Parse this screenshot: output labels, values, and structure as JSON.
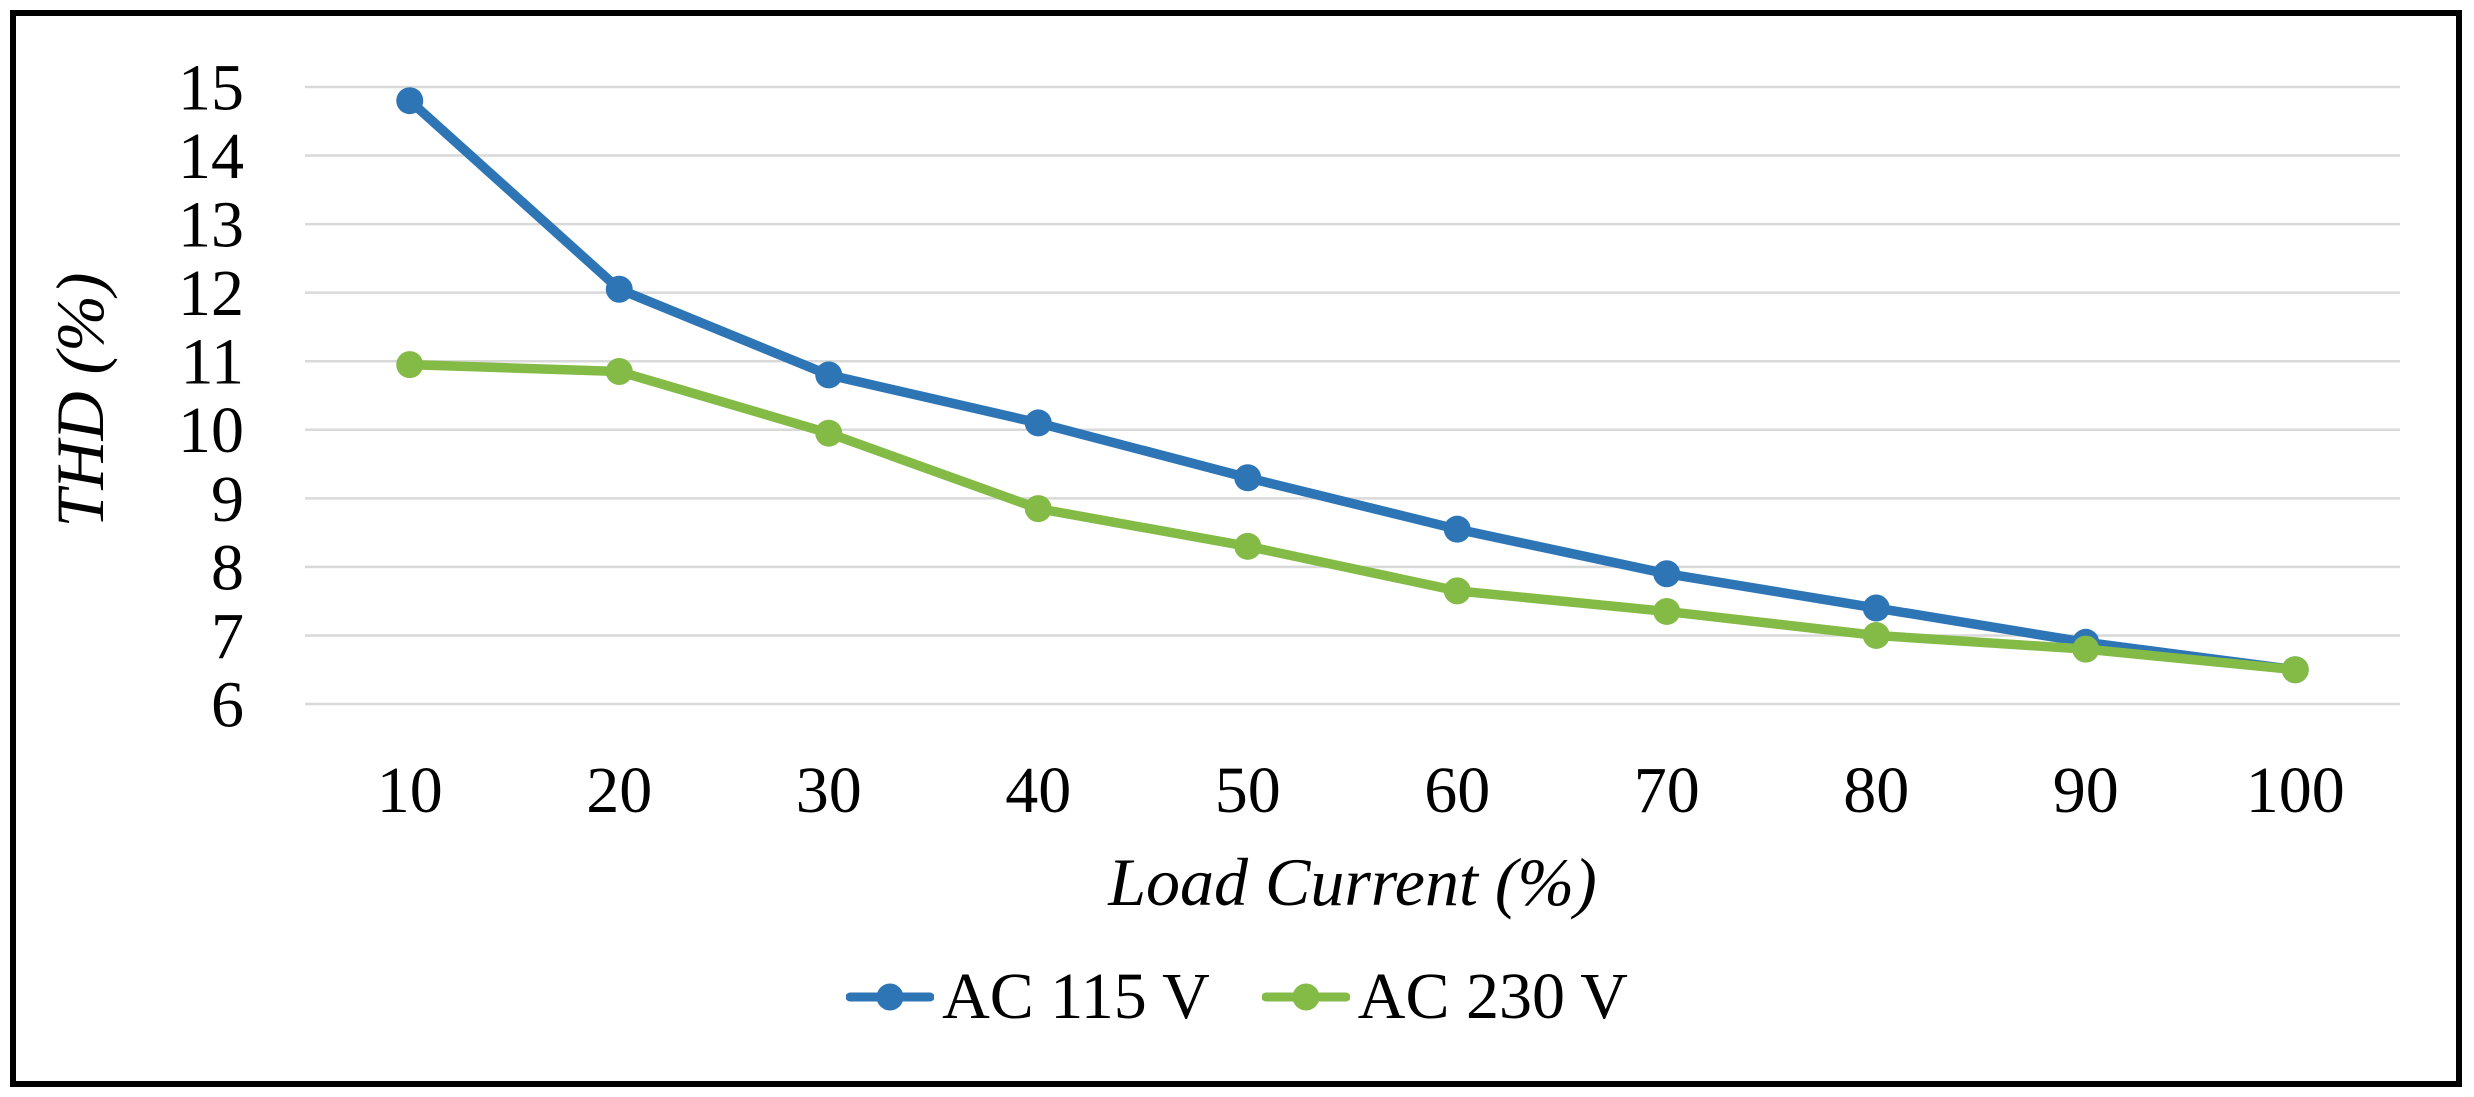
{
  "chart_data": {
    "type": "line",
    "title": "",
    "xlabel": "Load Current (%)",
    "ylabel": "THD (%)",
    "categories": [
      "10",
      "20",
      "30",
      "40",
      "50",
      "60",
      "70",
      "80",
      "90",
      "100"
    ],
    "series": [
      {
        "name": "AC 115 V",
        "color": "#2E75B6",
        "values": [
          14.8,
          12.05,
          10.8,
          10.1,
          9.3,
          8.55,
          7.9,
          7.4,
          6.9,
          6.5
        ]
      },
      {
        "name": "AC 230 V",
        "color": "#84BB47",
        "values": [
          10.95,
          10.85,
          9.95,
          8.85,
          8.3,
          7.65,
          7.35,
          7.0,
          6.8,
          6.5
        ]
      }
    ],
    "ylim": [
      6,
      15
    ],
    "y_tick_step": 1,
    "y_tick_labels": [
      "6",
      "7",
      "8",
      "9",
      "10",
      "11",
      "12",
      "13",
      "14",
      "15"
    ],
    "grid": "horizontal",
    "gridline_color": "#D9D9D9",
    "marker": "circle",
    "legend_position": "bottom",
    "frame_border_color": "#000000",
    "text_color": "#000000"
  }
}
